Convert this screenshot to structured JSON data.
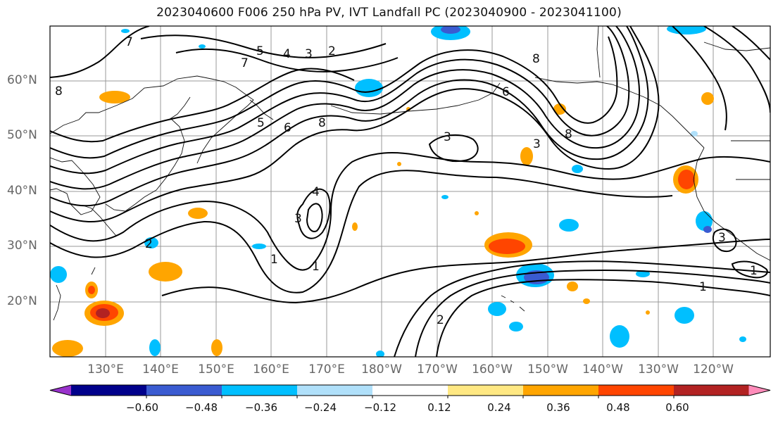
{
  "title": "2023040600 F006 250 hPa PV, IVT Landfall PC (2023040900 - 2023041100)",
  "map": {
    "lat_labels": [
      "60°N",
      "50°N",
      "40°N",
      "30°N",
      "20°N"
    ],
    "lon_labels": [
      "130°E",
      "140°E",
      "150°E",
      "160°E",
      "170°E",
      "180°W",
      "170°W",
      "160°W",
      "150°W",
      "140°W",
      "130°W",
      "120°W"
    ],
    "contour_labels": [
      {
        "text": "7"
      },
      {
        "text": "5"
      },
      {
        "text": "4"
      },
      {
        "text": "3"
      },
      {
        "text": "2"
      },
      {
        "text": "7"
      },
      {
        "text": "8"
      },
      {
        "text": "6"
      },
      {
        "text": "8"
      },
      {
        "text": "5"
      },
      {
        "text": "6"
      },
      {
        "text": "8"
      },
      {
        "text": "8"
      },
      {
        "text": "3"
      },
      {
        "text": "3"
      },
      {
        "text": "4"
      },
      {
        "text": "3"
      },
      {
        "text": "1"
      },
      {
        "text": "1"
      },
      {
        "text": "2"
      },
      {
        "text": "1"
      },
      {
        "text": "2"
      },
      {
        "text": "3"
      },
      {
        "text": "1"
      }
    ]
  },
  "colorbar": {
    "colors": [
      "#9932cc",
      "#00008b",
      "#3a5bd1",
      "#00bfff",
      "#b0e0fa",
      "#ffffff",
      "#ffe883",
      "#ffa500",
      "#ff4500",
      "#b22222",
      "#ff8cba"
    ],
    "tick_labels": [
      "−0.60",
      "−0.48",
      "−0.36",
      "−0.24",
      "−0.12",
      "0.12",
      "0.24",
      "0.36",
      "0.48",
      "0.60"
    ]
  }
}
